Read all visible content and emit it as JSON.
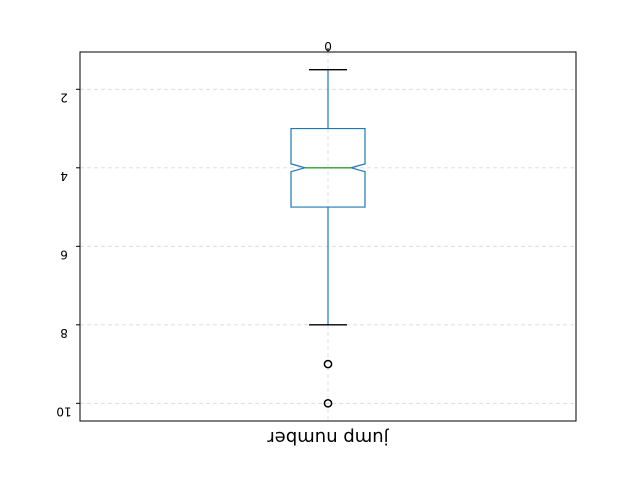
{
  "chart_data": {
    "type": "boxplot",
    "orientation": "vertical",
    "mirrored": true,
    "notched": true,
    "xlabel": "jump number",
    "category_labels": [
      "0"
    ],
    "y_axis": {
      "range": [
        1.05,
        10.45
      ],
      "inverted": true,
      "ticks": [
        2,
        4,
        6,
        8,
        10
      ]
    },
    "grid": true,
    "boxes": [
      {
        "label": "0",
        "whisker_low": 1.5,
        "q1": 3,
        "median": 4,
        "q3": 5,
        "whisker_high": 8,
        "notch_low": 3.9,
        "notch_high": 4.1,
        "fliers": [
          9,
          10
        ]
      }
    ],
    "colors": {
      "box": "#1f77b4",
      "median": "#2ca02c",
      "whisker": "#1f77b4",
      "cap": "#000000",
      "flier": "#000000",
      "grid": "#d9d9d9"
    }
  }
}
